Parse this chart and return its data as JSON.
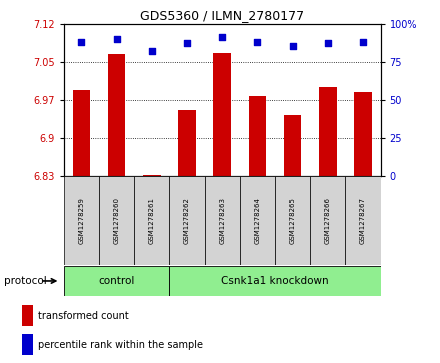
{
  "title": "GDS5360 / ILMN_2780177",
  "samples": [
    "GSM1278259",
    "GSM1278260",
    "GSM1278261",
    "GSM1278262",
    "GSM1278263",
    "GSM1278264",
    "GSM1278265",
    "GSM1278266",
    "GSM1278267"
  ],
  "bar_values": [
    6.995,
    7.065,
    6.828,
    6.955,
    7.068,
    6.982,
    6.945,
    7.0,
    6.99
  ],
  "dot_values": [
    88,
    90,
    82,
    87,
    91,
    88,
    85,
    87,
    88
  ],
  "ylim_left": [
    6.825,
    7.125
  ],
  "ylim_right": [
    0,
    100
  ],
  "yticks_left": [
    6.825,
    6.9,
    6.975,
    7.05,
    7.125
  ],
  "yticks_right": [
    0,
    25,
    50,
    75,
    100
  ],
  "bar_color": "#cc0000",
  "dot_color": "#0000cc",
  "bar_width": 0.5,
  "n_control": 3,
  "control_label": "control",
  "knockdown_label": "Csnk1a1 knockdown",
  "protocol_label": "protocol",
  "legend_bar_label": "transformed count",
  "legend_dot_label": "percentile rank within the sample",
  "sample_box_color": "#d3d3d3",
  "group_box_color": "#90ee90",
  "left_tick_color": "#cc0000",
  "right_tick_color": "#0000cc"
}
